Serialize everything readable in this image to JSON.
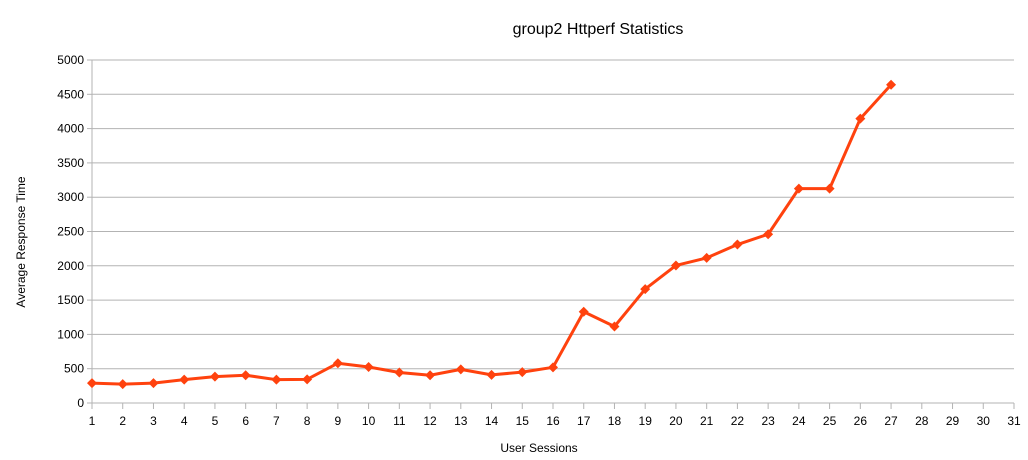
{
  "chart_data": {
    "type": "line",
    "title": "group2 Httperf Statistics",
    "xlabel": "User Sessions",
    "ylabel": "Average Response Time",
    "xlim": [
      1,
      31
    ],
    "ylim": [
      0,
      5000
    ],
    "x_ticks": [
      1,
      2,
      3,
      4,
      5,
      6,
      7,
      8,
      9,
      10,
      11,
      12,
      13,
      14,
      15,
      16,
      17,
      18,
      19,
      20,
      21,
      22,
      23,
      24,
      25,
      26,
      27,
      28,
      29,
      30,
      31
    ],
    "y_ticks": [
      0,
      500,
      1000,
      1500,
      2000,
      2500,
      3000,
      3500,
      4000,
      4500,
      5000
    ],
    "grid": true,
    "legend": "none",
    "series": [
      {
        "color": "#ff420e",
        "x": [
          1,
          2,
          3,
          4,
          5,
          6,
          7,
          8,
          9,
          10,
          11,
          12,
          13,
          14,
          15,
          16,
          17,
          18,
          19,
          20,
          21,
          22,
          23,
          24,
          25,
          26,
          27
        ],
        "y": [
          290,
          275,
          290,
          340,
          385,
          405,
          340,
          345,
          580,
          525,
          445,
          405,
          490,
          410,
          450,
          520,
          1330,
          1115,
          1660,
          2005,
          2115,
          2310,
          2460,
          3125,
          3125,
          4145,
          4640
        ]
      }
    ]
  }
}
